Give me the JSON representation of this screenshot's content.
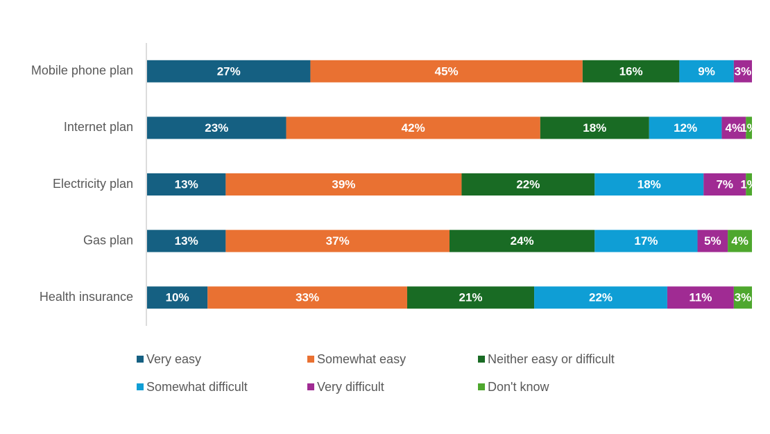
{
  "chart_data": {
    "type": "stacked-bar-horizontal",
    "categories": [
      "Mobile phone plan",
      "Internet plan",
      "Electricity plan",
      "Gas plan",
      "Health insurance"
    ],
    "xlim": [
      0,
      100
    ],
    "legend": "bottom",
    "series": [
      {
        "name": "Very easy",
        "color": "#156082",
        "values": [
          27,
          23,
          13,
          13,
          10
        ],
        "value_labels": [
          "27%",
          "23%",
          "13%",
          "13%",
          "10%"
        ]
      },
      {
        "name": "Somewhat easy",
        "color": "#e97132",
        "values": [
          45,
          42,
          39,
          37,
          33
        ],
        "value_labels": [
          "45%",
          "42%",
          "39%",
          "37%",
          "33%"
        ]
      },
      {
        "name": "Neither easy or difficult",
        "color": "#196b24",
        "values": [
          16,
          18,
          22,
          24,
          21
        ],
        "value_labels": [
          "16%",
          "18%",
          "22%",
          "24%",
          "21%"
        ]
      },
      {
        "name": "Somewhat difficult",
        "color": "#0f9ed5",
        "values": [
          9,
          12,
          18,
          17,
          22
        ],
        "value_labels": [
          "9%",
          "12%",
          "18%",
          "17%",
          "22%"
        ]
      },
      {
        "name": "Very difficult",
        "color": "#a02b93",
        "values": [
          3,
          4,
          7,
          5,
          11
        ],
        "value_labels": [
          "3%",
          "4%",
          "7%",
          "5%",
          "11%"
        ]
      },
      {
        "name": "Don't know",
        "color": "#4ea72e",
        "values": [
          null,
          1,
          1,
          4,
          3
        ],
        "value_labels": [
          null,
          "1%",
          "1%",
          "4%",
          "3%"
        ]
      }
    ]
  }
}
